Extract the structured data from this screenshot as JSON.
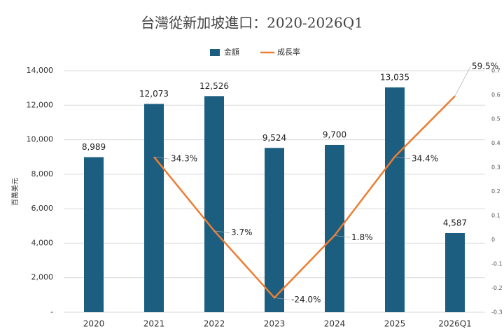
{
  "chart_data": {
    "type": "bar-line",
    "title": "台灣從新加坡進口：2020-2026Q1",
    "y_label": "百萬美元",
    "categories": [
      "2020",
      "2021",
      "2022",
      "2023",
      "2024",
      "2025",
      "2026Q1"
    ],
    "series": [
      {
        "name": "金額",
        "type": "bar",
        "color": "#1b5e80",
        "values": [
          8989,
          12073,
          12526,
          9524,
          9700,
          13035,
          4587
        ],
        "value_labels": [
          "8,989",
          "12,073",
          "12,526",
          "9,524",
          "9,700",
          "13,035",
          "4,587"
        ]
      },
      {
        "name": "成長率",
        "type": "line",
        "axis": "y2",
        "color": "#ed7d31",
        "values": [
          null,
          0.343,
          0.037,
          -0.24,
          0.018,
          0.344,
          0.595
        ],
        "value_labels": [
          null,
          "34.3%",
          "3.7%",
          "-24.0%",
          "1.8%",
          "34.4%",
          "59.5%"
        ]
      }
    ],
    "ylim": [
      0,
      14000
    ],
    "yticks": [
      {
        "value": 0,
        "label": "-"
      },
      {
        "value": 2000,
        "label": "2,000"
      },
      {
        "value": 4000,
        "label": "4,000"
      },
      {
        "value": 6000,
        "label": "6,000"
      },
      {
        "value": 8000,
        "label": "8,000"
      },
      {
        "value": 10000,
        "label": "10,000"
      },
      {
        "value": 12000,
        "label": "12,000"
      },
      {
        "value": 14000,
        "label": "14,000"
      }
    ],
    "y2lim": [
      -0.3,
      0.7
    ],
    "y2ticks": [
      -0.3,
      -0.2,
      -0.1,
      0,
      0.1,
      0.2,
      0.3,
      0.4,
      0.5,
      0.6,
      0.7
    ],
    "grid": true
  }
}
